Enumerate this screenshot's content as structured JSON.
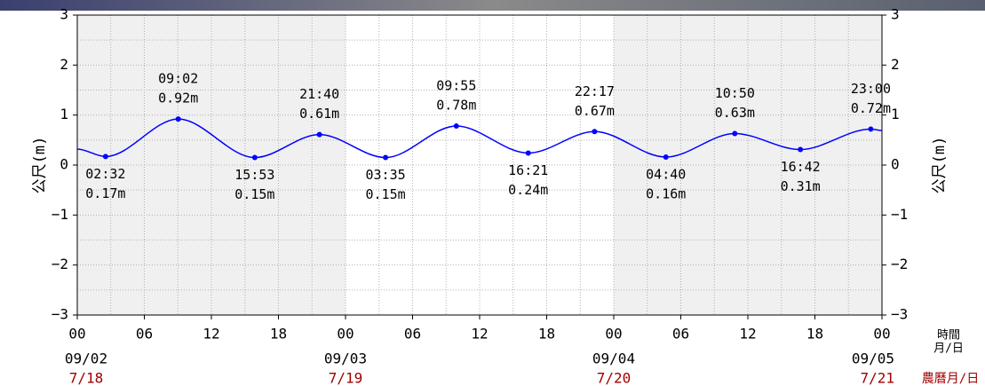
{
  "chart_data": {
    "type": "line",
    "ylabel": "公尺(m)",
    "x_unit_label": "時間",
    "date_unit_label": "月/日",
    "lunar_unit_label": "農曆月/日",
    "xlim": [
      0,
      72
    ],
    "xticks": [
      {
        "value": 0,
        "label": "00"
      },
      {
        "value": 6,
        "label": "06"
      },
      12,
      18,
      {
        "value": 24,
        "label": "00"
      },
      {
        "value": 30,
        "label": "06"
      },
      {
        "value": 36,
        "label": "12"
      },
      {
        "value": 42,
        "label": "18"
      },
      {
        "value": 48,
        "label": "00"
      },
      {
        "value": 54,
        "label": "06"
      },
      {
        "value": 60,
        "label": "12"
      },
      {
        "value": 66,
        "label": "18"
      },
      {
        "value": 72,
        "label": "00"
      }
    ],
    "dates": [
      {
        "value": 0,
        "label": "09/02"
      },
      {
        "value": 24,
        "label": "09/03"
      },
      {
        "value": 48,
        "label": "09/04"
      },
      {
        "value": 72,
        "label": "09/05"
      }
    ],
    "lunar_dates": [
      "7/18",
      "7/19",
      "7/20",
      "7/21"
    ],
    "ylim": [
      -3,
      3
    ],
    "yticks": [
      {
        "value": -3,
        "label": "−3"
      },
      {
        "value": -2,
        "label": "−2"
      },
      {
        "value": -1,
        "label": "−1"
      },
      0,
      1,
      2,
      3
    ],
    "grid": true,
    "series": [
      {
        "color": "#0000ff",
        "x": [
          0,
          2.533,
          9.033,
          15.883,
          21.667,
          27.583,
          33.917,
          40.35,
          46.283,
          52.667,
          58.833,
          64.7,
          71,
          72
        ],
        "values": [
          0.32,
          0.17,
          0.92,
          0.15,
          0.61,
          0.15,
          0.78,
          0.24,
          0.67,
          0.16,
          0.63,
          0.31,
          0.72,
          0.69
        ],
        "time_labels": [
          null,
          "02:32",
          "09:02",
          "15:53",
          "21:40",
          "03:35",
          "09:55",
          "16:21",
          "22:17",
          "04:40",
          "10:50",
          "16:42",
          "23:00",
          null
        ],
        "value_labels": [
          null,
          "0.17m",
          "0.92m",
          "0.15m",
          "0.61m",
          "0.15m",
          "0.78m",
          "0.24m",
          "0.67m",
          "0.16m",
          "0.63m",
          "0.31m",
          "0.72m",
          null
        ]
      }
    ]
  }
}
